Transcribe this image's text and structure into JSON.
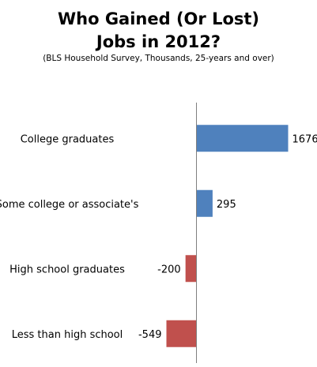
{
  "chart_data": {
    "type": "bar",
    "orientation": "horizontal",
    "title": [
      "Who Gained (Or Lost)",
      "Jobs in 2012?"
    ],
    "subtitle": "(BLS Household Survey, Thousands, 25-years and over)",
    "categories": [
      "College graduates",
      "Some college or associate's",
      "High school graduates",
      "Less than high school"
    ],
    "values": [
      1676,
      295,
      -200,
      -549
    ],
    "value_labels": [
      "1676",
      "295",
      "-200",
      "-549"
    ],
    "colors": {
      "positive": "#4f81bd",
      "negative": "#c0504d",
      "axis": "#7f7f7f"
    },
    "xlim": [
      -1500,
      1676
    ],
    "grid": false,
    "legend": "none"
  }
}
